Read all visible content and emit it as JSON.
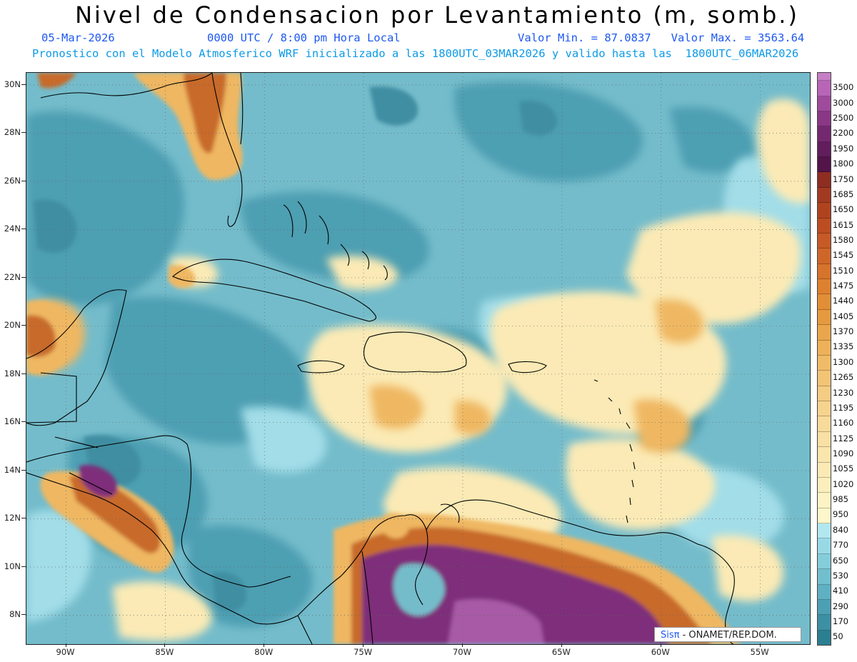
{
  "title": "Nivel de Condensacion por Levantamiento (m, somb.)",
  "subtitle": {
    "date": "05-Mar-2026",
    "time": "0000 UTC / 8:00 pm Hora Local",
    "minmax": "Valor Min. = 87.0837   Valor Max. = 3563.64",
    "model": "Pronostico con el Modelo Atmosferico WRF inicializado a las 1800UTC_03MAR2026 y valido hasta las  1800UTC_06MAR2026"
  },
  "credit": {
    "brand": "Sisπ",
    "text": " - ONAMET/REP.DOM."
  },
  "axes": {
    "lat_labels": [
      "30N",
      "28N",
      "26N",
      "24N",
      "22N",
      "20N",
      "18N",
      "16N",
      "14N",
      "12N",
      "10N",
      "8N"
    ],
    "lat_values": [
      30,
      28,
      26,
      24,
      22,
      20,
      18,
      16,
      14,
      12,
      10,
      8
    ],
    "lon_labels": [
      "90W",
      "85W",
      "80W",
      "75W",
      "70W",
      "65W",
      "60W",
      "55W"
    ],
    "lon_values": [
      -90,
      -85,
      -80,
      -75,
      -70,
      -65,
      -60,
      -55
    ],
    "lat_range": [
      6.8,
      30.5
    ],
    "lon_range": [
      -92.0,
      -52.5
    ],
    "grid": true
  },
  "colorbar": {
    "levels": [
      "3500",
      "3000",
      "2500",
      "2200",
      "1950",
      "1800",
      "1750",
      "1685",
      "1650",
      "1615",
      "1580",
      "1545",
      "1510",
      "1475",
      "1440",
      "1405",
      "1370",
      "1335",
      "1300",
      "1265",
      "1230",
      "1195",
      "1160",
      "1125",
      "1090",
      "1055",
      "1020",
      "985",
      "950",
      "840",
      "770",
      "650",
      "530",
      "410",
      "290",
      "170",
      "50"
    ],
    "colors": [
      "#b865b8",
      "#9f4a9c",
      "#8a3785",
      "#74286f",
      "#611d5c",
      "#521449",
      "#8e2d21",
      "#a23a22",
      "#b0431f",
      "#bc4d22",
      "#c65a26",
      "#cf6629",
      "#d6732c",
      "#dd8130",
      "#e28e36",
      "#e69a40",
      "#eaa64c",
      "#edb15a",
      "#f0bb68",
      "#f2c476",
      "#f4cc83",
      "#f6d38f",
      "#f8da9a",
      "#f9e0a4",
      "#fae5ad",
      "#fbeab5",
      "#fcefbd",
      "#fdf3c4",
      "#fef7cb",
      "#b2e7ef",
      "#99d9e6",
      "#85cdd9",
      "#71bfce",
      "#5fb0c2",
      "#4d9fb3",
      "#3d8fa3",
      "#2c7e92"
    ]
  },
  "palette": {
    "base": "#74bccb",
    "teal_dark": "#4e9fb2",
    "teal_deep": "#3f8ea2",
    "cyan_light": "#a2dde8",
    "yellow": "#fbeab5",
    "orange": "#efb762",
    "brown": "#c86a2b",
    "purple": "#7e2d7a",
    "purple_light": "#a85aa6",
    "coast": "#000000"
  }
}
